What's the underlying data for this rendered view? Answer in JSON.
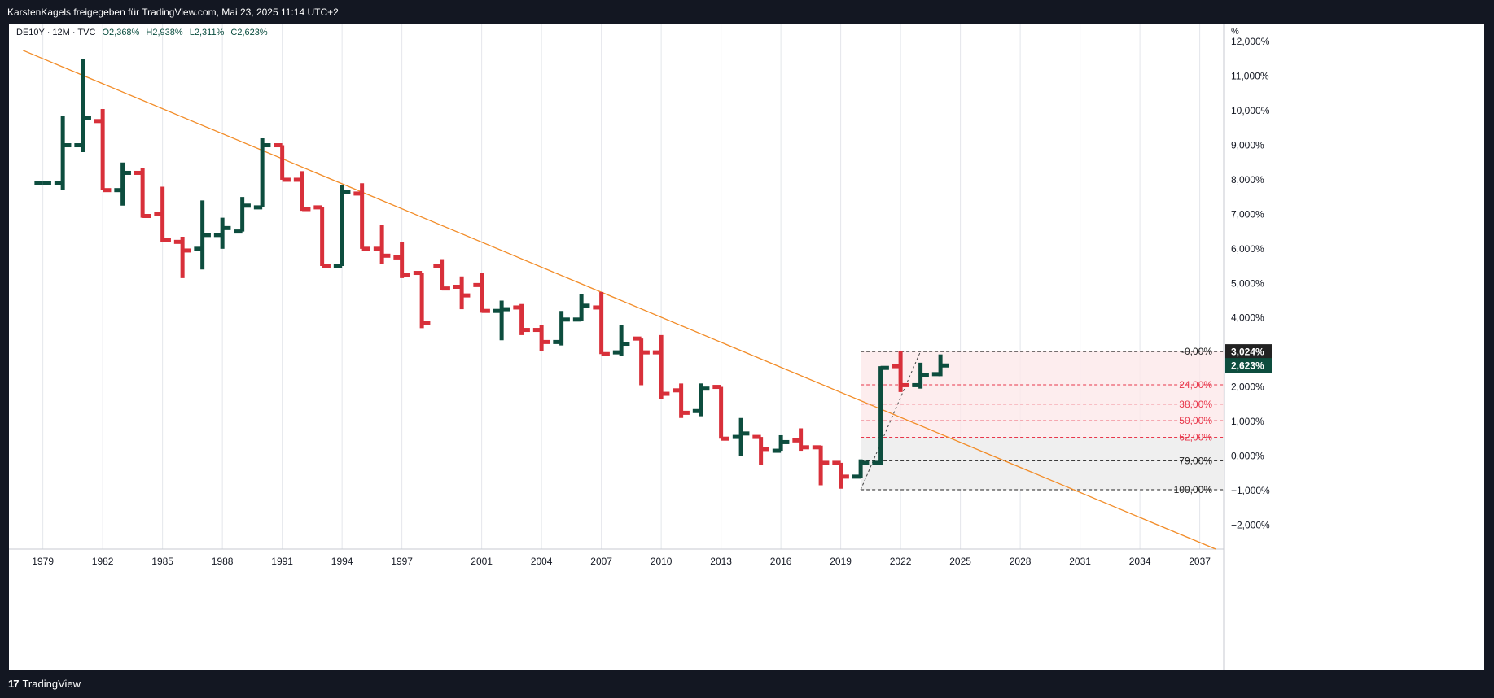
{
  "header": {
    "title": "KarstenKagels freigegeben für TradingView.com, Mai 23, 2025 11:14 UTC+2"
  },
  "legend": {
    "symbol": "DE10Y · 12M · TVC",
    "open": "O2,368%",
    "high": "H2,938%",
    "low": "L2,311%",
    "close": "C2,623%"
  },
  "footer": {
    "brand": "TradingView"
  },
  "colors": {
    "up": "#0d4d3e",
    "down": "#d8303a",
    "trend": "#f28c28",
    "fib_red": "#e8374b",
    "fib_dark": "#222222"
  },
  "chart_data": {
    "type": "ohlc-bar",
    "ylabel": "%",
    "ylim": [
      -2.7,
      12.5
    ],
    "xlim": [
      1977.3,
      2038.2
    ],
    "x_ticks": [
      1979,
      1982,
      1985,
      1988,
      1991,
      1994,
      1997,
      2001,
      2004,
      2007,
      2010,
      2013,
      2016,
      2019,
      2022,
      2025,
      2028,
      2031,
      2034,
      2037
    ],
    "x_tick_labels": [
      "1979",
      "1982",
      "1985",
      "1988",
      "1991",
      "1994",
      "1997",
      "2001",
      "2004",
      "2007",
      "2010",
      "2013",
      "2016",
      "2019",
      "2022",
      "2025",
      "2028",
      "2031",
      "2034",
      "2037"
    ],
    "y_ticks": [
      -2,
      -1,
      0,
      1,
      2,
      3,
      4,
      5,
      6,
      7,
      8,
      9,
      10,
      11,
      12
    ],
    "y_tick_labels": [
      "−2,000%",
      "−1,000%",
      "0,000%",
      "1,000%",
      "2,000%",
      "3,000%",
      "4,000%",
      "5,000%",
      "6,000%",
      "7,000%",
      "8,000%",
      "9,000%",
      "10,000%",
      "11,000%",
      "12,000%"
    ],
    "bars": [
      {
        "x": 1979.0,
        "o": 7.9,
        "h": 7.9,
        "l": 7.9,
        "c": 7.9
      },
      {
        "x": 1980.0,
        "o": 7.9,
        "h": 9.85,
        "l": 7.7,
        "c": 9.0
      },
      {
        "x": 1981.0,
        "o": 9.0,
        "h": 11.5,
        "l": 8.8,
        "c": 9.8
      },
      {
        "x": 1982.0,
        "o": 9.7,
        "h": 10.05,
        "l": 7.7,
        "c": 7.7
      },
      {
        "x": 1983.0,
        "o": 7.7,
        "h": 8.5,
        "l": 7.25,
        "c": 8.2
      },
      {
        "x": 1984.0,
        "o": 8.2,
        "h": 8.35,
        "l": 6.9,
        "c": 6.95
      },
      {
        "x": 1985.0,
        "o": 7.0,
        "h": 7.8,
        "l": 6.2,
        "c": 6.25
      },
      {
        "x": 1986.0,
        "o": 6.2,
        "h": 6.35,
        "l": 5.15,
        "c": 5.95
      },
      {
        "x": 1987.0,
        "o": 6.0,
        "h": 7.4,
        "l": 5.4,
        "c": 6.4
      },
      {
        "x": 1988.0,
        "o": 6.4,
        "h": 6.9,
        "l": 6.0,
        "c": 6.6
      },
      {
        "x": 1989.0,
        "o": 6.5,
        "h": 7.5,
        "l": 6.5,
        "c": 7.25
      },
      {
        "x": 1990.0,
        "o": 7.2,
        "h": 9.2,
        "l": 7.2,
        "c": 9.0
      },
      {
        "x": 1991.0,
        "o": 9.0,
        "h": 9.0,
        "l": 8.0,
        "c": 8.0
      },
      {
        "x": 1992.0,
        "o": 8.0,
        "h": 8.25,
        "l": 7.1,
        "c": 7.15
      },
      {
        "x": 1993.0,
        "o": 7.2,
        "h": 7.2,
        "l": 5.5,
        "c": 5.5
      },
      {
        "x": 1994.0,
        "o": 5.5,
        "h": 7.85,
        "l": 5.5,
        "c": 7.65
      },
      {
        "x": 1995.0,
        "o": 7.6,
        "h": 7.9,
        "l": 6.0,
        "c": 6.0
      },
      {
        "x": 1996.0,
        "o": 6.0,
        "h": 6.7,
        "l": 5.55,
        "c": 5.8
      },
      {
        "x": 1997.0,
        "o": 5.75,
        "h": 6.2,
        "l": 5.15,
        "c": 5.25
      },
      {
        "x": 1998.0,
        "o": 5.3,
        "h": 5.3,
        "l": 3.7,
        "c": 3.85
      },
      {
        "x": 1999.0,
        "o": 5.5,
        "h": 5.7,
        "l": 4.8,
        "c": 4.85
      },
      {
        "x": 2000.0,
        "o": 4.9,
        "h": 5.2,
        "l": 4.25,
        "c": 4.65
      },
      {
        "x": 2001.0,
        "o": 4.95,
        "h": 5.3,
        "l": 4.15,
        "c": 4.2
      },
      {
        "x": 2002.0,
        "o": 4.2,
        "h": 4.5,
        "l": 3.35,
        "c": 4.25
      },
      {
        "x": 2003.0,
        "o": 4.3,
        "h": 4.4,
        "l": 3.5,
        "c": 3.65
      },
      {
        "x": 2004.0,
        "o": 3.65,
        "h": 3.8,
        "l": 3.05,
        "c": 3.3
      },
      {
        "x": 2005.0,
        "o": 3.3,
        "h": 4.2,
        "l": 3.2,
        "c": 3.95
      },
      {
        "x": 2006.0,
        "o": 3.95,
        "h": 4.7,
        "l": 3.9,
        "c": 4.35
      },
      {
        "x": 2007.0,
        "o": 4.3,
        "h": 4.75,
        "l": 2.95,
        "c": 2.95
      },
      {
        "x": 2008.0,
        "o": 3.0,
        "h": 3.8,
        "l": 2.9,
        "c": 3.25
      },
      {
        "x": 2009.0,
        "o": 3.4,
        "h": 3.4,
        "l": 2.05,
        "c": 3.0
      },
      {
        "x": 2010.0,
        "o": 3.0,
        "h": 3.5,
        "l": 1.65,
        "c": 1.8
      },
      {
        "x": 2011.0,
        "o": 1.9,
        "h": 2.1,
        "l": 1.1,
        "c": 1.25
      },
      {
        "x": 2012.0,
        "o": 1.3,
        "h": 2.1,
        "l": 1.15,
        "c": 1.95
      },
      {
        "x": 2013.0,
        "o": 2.0,
        "h": 2.0,
        "l": 0.5,
        "c": 0.5
      },
      {
        "x": 2014.0,
        "o": 0.55,
        "h": 1.1,
        "l": 0.0,
        "c": 0.65
      },
      {
        "x": 2015.0,
        "o": 0.55,
        "h": 0.55,
        "l": -0.25,
        "c": 0.2
      },
      {
        "x": 2016.0,
        "o": 0.15,
        "h": 0.6,
        "l": 0.15,
        "c": 0.4
      },
      {
        "x": 2017.0,
        "o": 0.45,
        "h": 0.8,
        "l": 0.15,
        "c": 0.25
      },
      {
        "x": 2018.0,
        "o": 0.25,
        "h": 0.3,
        "l": -0.85,
        "c": -0.2
      },
      {
        "x": 2019.0,
        "o": -0.2,
        "h": -0.2,
        "l": -0.95,
        "c": -0.6
      },
      {
        "x": 2020.0,
        "o": -0.6,
        "h": -0.1,
        "l": -0.65,
        "c": -0.2
      },
      {
        "x": 2021.0,
        "o": -0.2,
        "h": 2.6,
        "l": -0.25,
        "c": 2.55
      },
      {
        "x": 2022.0,
        "o": 2.6,
        "h": 3.03,
        "l": 1.85,
        "c": 2.05
      },
      {
        "x": 2023.0,
        "o": 2.05,
        "h": 2.7,
        "l": 1.95,
        "c": 2.35
      },
      {
        "x": 2024.0,
        "o": 2.37,
        "h": 2.94,
        "l": 2.31,
        "c": 2.62
      }
    ],
    "trendline": {
      "from": [
        1978.0,
        11.75
      ],
      "to": [
        2037.8,
        -2.7
      ]
    },
    "fibonacci": {
      "x_start": 2020.0,
      "x_end": 2037.8,
      "levels": [
        {
          "label": "-0,00%",
          "value": 3.024,
          "color": "#222222"
        },
        {
          "label": "24,00%",
          "value": 2.06,
          "color": "#e8374b"
        },
        {
          "label": "38,00%",
          "value": 1.5,
          "color": "#e8374b"
        },
        {
          "label": "50,00%",
          "value": 1.02,
          "color": "#e8374b"
        },
        {
          "label": "62,00%",
          "value": 0.54,
          "color": "#e8374b"
        },
        {
          "label": "79,00%",
          "value": -0.14,
          "color": "#222222"
        },
        {
          "label": "100,00%",
          "value": -0.98,
          "color": "#222222"
        }
      ]
    },
    "dashed_swing": {
      "from": [
        2020.0,
        -0.98
      ],
      "to": [
        2023.0,
        3.03
      ]
    },
    "price_tags": [
      {
        "label": "3,024%",
        "value": 3.024,
        "color": "#222222"
      },
      {
        "label": "2,623%",
        "value": 2.623,
        "color": "#0d4d3e"
      }
    ]
  }
}
